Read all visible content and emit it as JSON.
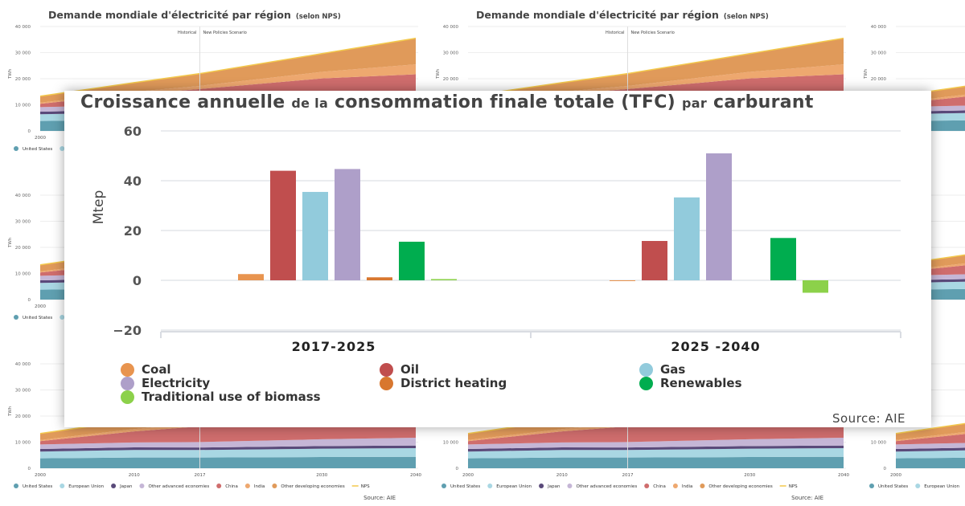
{
  "background": {
    "title": "Demande mondiale d'électricité par région",
    "title_suffix": "(selon NPS)",
    "ylabel": "TWh",
    "yticks": [
      "40 000",
      "30 000",
      "20 000",
      "10 000",
      "0"
    ],
    "xticks": [
      "2000",
      "2010",
      "2017",
      "2030",
      "2040"
    ],
    "annotation_left": "Historical",
    "annotation_right": "New Policies Scenario",
    "source": "Source: AIE",
    "legend": [
      {
        "name": "United States",
        "color": "#5f9fb0"
      },
      {
        "name": "European Union",
        "color": "#a9d7e3"
      },
      {
        "name": "Japan",
        "color": "#5a4a7a"
      },
      {
        "name": "Other advanced economies",
        "color": "#c5b6d6"
      },
      {
        "name": "China",
        "color": "#cf6d6d"
      },
      {
        "name": "India",
        "color": "#eea86f"
      },
      {
        "name": "Other developing economies",
        "color": "#e09a5a"
      },
      {
        "name": "NPS",
        "color": "#f3c94c"
      }
    ]
  },
  "chart_data": [
    {
      "type": "bar",
      "title_parts": [
        "Croissance annuelle",
        "de la",
        "consommation finale totale (TFC)",
        "par",
        "carburant"
      ],
      "ylabel": "Mtep",
      "ylim": [
        -20,
        60
      ],
      "yticks": [
        "60",
        "40",
        "20",
        "0",
        "−20"
      ],
      "grid": true,
      "legend_placement": "bottom",
      "categories": [
        "2017-2025",
        "2025 -2040"
      ],
      "series": [
        {
          "name": "Coal",
          "color": "#e8944f",
          "values": [
            2.5,
            -0.3
          ]
        },
        {
          "name": "Oil",
          "color": "#c04e4e",
          "values": [
            44,
            15.8
          ]
        },
        {
          "name": "Gas",
          "color": "#92cbdc",
          "values": [
            35.5,
            33.3
          ]
        },
        {
          "name": "Electricity",
          "color": "#ae9fc9",
          "values": [
            44.7,
            51
          ]
        },
        {
          "name": "District heating",
          "color": "#d8772f",
          "values": [
            1.2,
            0
          ]
        },
        {
          "name": "Renewables",
          "color": "#00ad4f",
          "values": [
            15.5,
            17
          ]
        },
        {
          "name": "Traditional use of biomass",
          "color": "#8cd14a",
          "values": [
            0.5,
            -5
          ]
        }
      ],
      "source": "Source: AIE"
    },
    {
      "type": "area",
      "title": "Demande mondiale d'électricité par région (selon NPS)",
      "ylabel": "TWh",
      "ylim": [
        0,
        40000
      ],
      "x": [
        2000,
        2010,
        2017,
        2030,
        2040
      ],
      "stacked": true,
      "series": [
        {
          "name": "United States",
          "values": [
            3800,
            4100,
            4100,
            4300,
            4400
          ]
        },
        {
          "name": "European Union",
          "values": [
            2600,
            2900,
            2900,
            3200,
            3300
          ]
        },
        {
          "name": "Japan",
          "values": [
            1000,
            1000,
            950,
            1000,
            1000
          ]
        },
        {
          "name": "Other advanced economies",
          "values": [
            1700,
            1900,
            2100,
            2600,
            3000
          ]
        },
        {
          "name": "China",
          "values": [
            1300,
            4200,
            6000,
            9000,
            10000
          ]
        },
        {
          "name": "India",
          "values": [
            400,
            900,
            1200,
            2500,
            3800
          ]
        },
        {
          "name": "Other developing economies",
          "values": [
            2500,
            3500,
            4700,
            7000,
            10000
          ]
        }
      ]
    }
  ]
}
